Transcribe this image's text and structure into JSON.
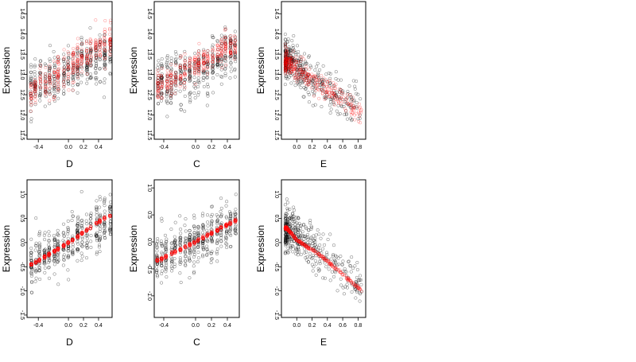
{
  "chart_data": [
    {
      "type": "scatter",
      "panel": "top-left",
      "xlabel": "D",
      "ylabel": "Expression",
      "xlim": [
        -0.55,
        0.58
      ],
      "ylim": [
        11.4,
        14.8
      ],
      "xticks": [
        -0.4,
        0.0,
        0.2,
        0.4
      ],
      "xtick_labels": [
        "-0.4",
        "0.0",
        "0.2",
        "0.4"
      ],
      "yticks": [
        11.5,
        12.0,
        12.5,
        13.0,
        13.5,
        14.0,
        14.5
      ],
      "ytick_labels": [
        "11.5",
        "12.0",
        "12.5",
        "13.0",
        "13.5",
        "14.0",
        "14.5"
      ],
      "series": [
        {
          "color": "#000000",
          "role": "observed",
          "x_range": [
            -0.5,
            0.55
          ],
          "y_mean_trend": [
            [
              -0.45,
              12.7
            ],
            [
              0.0,
              13.1
            ],
            [
              0.5,
              13.5
            ]
          ],
          "y_spread": 0.6
        },
        {
          "color": "#ff0000",
          "role": "fitted",
          "x_range": [
            -0.5,
            0.55
          ],
          "y_mean_trend": [
            [
              -0.45,
              12.6
            ],
            [
              0.0,
              13.2
            ],
            [
              0.5,
              13.8
            ]
          ],
          "y_spread": 0.45
        }
      ]
    },
    {
      "type": "scatter",
      "panel": "top-middle",
      "xlabel": "C",
      "ylabel": "Expression",
      "xlim": [
        -0.52,
        0.55
      ],
      "ylim": [
        11.4,
        14.8
      ],
      "xticks": [
        -0.4,
        0.0,
        0.2,
        0.4
      ],
      "xtick_labels": [
        "-0.4",
        "0.0",
        "0.2",
        "0.4"
      ],
      "yticks": [
        11.5,
        12.0,
        12.5,
        13.0,
        13.5,
        14.0,
        14.5
      ],
      "ytick_labels": [
        "11.5",
        "12.0",
        "12.5",
        "13.0",
        "13.5",
        "14.0",
        "14.5"
      ],
      "series": [
        {
          "color": "#000000",
          "role": "observed",
          "x_range": [
            -0.48,
            0.5
          ],
          "y_mean_trend": [
            [
              -0.45,
              12.8
            ],
            [
              0.0,
              13.0
            ],
            [
              0.5,
              13.6
            ]
          ],
          "y_spread": 0.6
        },
        {
          "color": "#ff0000",
          "role": "fitted",
          "x_range": [
            -0.48,
            0.5
          ],
          "y_mean_trend": [
            [
              -0.45,
              12.7
            ],
            [
              0.0,
              13.2
            ],
            [
              0.5,
              13.8
            ]
          ],
          "y_spread": 0.35
        }
      ]
    },
    {
      "type": "scatter",
      "panel": "top-right",
      "xlabel": "E",
      "ylabel": "Expression",
      "xlim": [
        -0.2,
        0.9
      ],
      "ylim": [
        11.4,
        14.8
      ],
      "xticks": [
        0.0,
        0.2,
        0.4,
        0.6,
        0.8
      ],
      "xtick_labels": [
        "0.0",
        "0.2",
        "0.4",
        "0.6",
        "0.8"
      ],
      "yticks": [
        11.5,
        12.0,
        12.5,
        13.0,
        13.5,
        14.0,
        14.5
      ],
      "ytick_labels": [
        "11.5",
        "12.0",
        "12.5",
        "13.0",
        "13.5",
        "14.0",
        "14.5"
      ],
      "series": [
        {
          "color": "#000000",
          "role": "observed",
          "x_range": [
            -0.15,
            0.85
          ],
          "y_mean_trend": [
            [
              -0.13,
              13.4
            ],
            [
              0.3,
              12.7
            ],
            [
              0.85,
              12.1
            ]
          ],
          "y_spread": 0.5
        },
        {
          "color": "#ff0000",
          "role": "fitted",
          "x_range": [
            -0.15,
            0.85
          ],
          "y_mean_trend": [
            [
              -0.13,
              13.3
            ],
            [
              0.3,
              12.8
            ],
            [
              0.85,
              12.0
            ]
          ],
          "y_spread": 0.3
        }
      ]
    },
    {
      "type": "scatter",
      "panel": "bottom-left",
      "xlabel": "D",
      "ylabel": "Expression",
      "xlim": [
        -0.55,
        0.58
      ],
      "ylim": [
        -1.55,
        1.3
      ],
      "xticks": [
        -0.4,
        0.0,
        0.2,
        0.4
      ],
      "xtick_labels": [
        "-0.4",
        "0.0",
        "0.2",
        "0.4"
      ],
      "yticks": [
        -1.5,
        -1.0,
        -0.5,
        0.0,
        0.5,
        1.0
      ],
      "ytick_labels": [
        "-1.5",
        "-1.0",
        "-0.5",
        "0.0",
        "0.5",
        "1.0"
      ],
      "series": [
        {
          "color": "#000000",
          "role": "observed",
          "x_range": [
            -0.5,
            0.55
          ],
          "y_mean_trend": [
            [
              -0.45,
              -0.4
            ],
            [
              0.0,
              0.0
            ],
            [
              0.5,
              0.45
            ]
          ],
          "y_spread": 0.5
        },
        {
          "color": "#ff0000",
          "role": "fitted",
          "x_range": [
            -0.5,
            0.55
          ],
          "y_mean_trend": [
            [
              -0.48,
              -0.45
            ],
            [
              0.0,
              0.0
            ],
            [
              0.52,
              0.55
            ]
          ],
          "y_spread": 0.03
        }
      ]
    },
    {
      "type": "scatter",
      "panel": "bottom-middle",
      "xlabel": "C",
      "ylabel": "Expression",
      "xlim": [
        -0.52,
        0.55
      ],
      "ylim": [
        -1.4,
        1.15
      ],
      "xticks": [
        -0.4,
        0.0,
        0.2,
        0.4
      ],
      "xtick_labels": [
        "-0.4",
        "0.0",
        "0.2",
        "0.4"
      ],
      "yticks": [
        -1.0,
        -0.5,
        0.0,
        0.5,
        1.0
      ],
      "ytick_labels": [
        "-1.0",
        "-0.5",
        "0.0",
        "0.5",
        "1.0"
      ],
      "series": [
        {
          "color": "#000000",
          "role": "observed",
          "x_range": [
            -0.48,
            0.5
          ],
          "y_mean_trend": [
            [
              -0.45,
              -0.3
            ],
            [
              0.0,
              0.0
            ],
            [
              0.5,
              0.35
            ]
          ],
          "y_spread": 0.45
        },
        {
          "color": "#ff0000",
          "role": "fitted",
          "x_range": [
            -0.48,
            0.5
          ],
          "y_mean_trend": [
            [
              -0.48,
              -0.35
            ],
            [
              0.0,
              0.0
            ],
            [
              0.5,
              0.4
            ]
          ],
          "y_spread": 0.03
        }
      ]
    },
    {
      "type": "scatter",
      "panel": "bottom-right",
      "xlabel": "E",
      "ylabel": "Expression",
      "xlim": [
        -0.2,
        0.9
      ],
      "ylim": [
        -1.55,
        1.3
      ],
      "xticks": [
        0.0,
        0.2,
        0.4,
        0.6,
        0.8
      ],
      "xtick_labels": [
        "0.0",
        "0.2",
        "0.4",
        "0.6",
        "0.8"
      ],
      "yticks": [
        -1.5,
        -1.0,
        -0.5,
        0.0,
        0.5,
        1.0
      ],
      "ytick_labels": [
        "-1.5",
        "-1.0",
        "-0.5",
        "0.0",
        "0.5",
        "1.0"
      ],
      "series": [
        {
          "color": "#000000",
          "role": "observed",
          "x_range": [
            -0.15,
            0.85
          ],
          "y_mean_trend": [
            [
              -0.13,
              0.3
            ],
            [
              0.3,
              -0.2
            ],
            [
              0.85,
              -0.95
            ]
          ],
          "y_spread": 0.45
        },
        {
          "color": "#ff0000",
          "role": "fitted",
          "x_range": [
            -0.15,
            0.85
          ],
          "y_mean_trend": [
            [
              -0.13,
              0.3
            ],
            [
              0.0,
              0.05
            ],
            [
              0.3,
              -0.25
            ],
            [
              0.85,
              -1.0
            ]
          ],
          "y_spread": 0.03
        }
      ]
    }
  ]
}
